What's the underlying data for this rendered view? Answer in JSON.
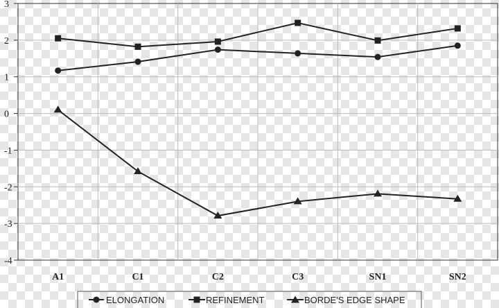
{
  "chart_data": {
    "type": "line",
    "title": "",
    "xlabel": "",
    "ylabel": "",
    "categories": [
      "A1",
      "C1",
      "C2",
      "C3",
      "SN1",
      "SN2"
    ],
    "ylim": [
      -4,
      3
    ],
    "yticks": [
      "3",
      "2",
      "1",
      "0",
      "-1",
      "-2",
      "-3",
      "-4"
    ],
    "grid": true,
    "legend_position": "bottom",
    "series": [
      {
        "name": "ELONGATION",
        "marker": "circle",
        "values": [
          1.17,
          1.41,
          1.74,
          1.64,
          1.54,
          1.85
        ]
      },
      {
        "name": "REFINEMENT",
        "marker": "square",
        "values": [
          2.05,
          1.82,
          1.96,
          2.47,
          1.99,
          2.32
        ]
      },
      {
        "name": "BORDE'S EDGE SHAPE",
        "marker": "triangle",
        "values": [
          0.1,
          -1.58,
          -2.79,
          -2.4,
          -2.19,
          -2.33
        ]
      }
    ],
    "colors": {
      "line": "#222222",
      "grid": "#bbbbbb",
      "axis": "#333333"
    }
  }
}
